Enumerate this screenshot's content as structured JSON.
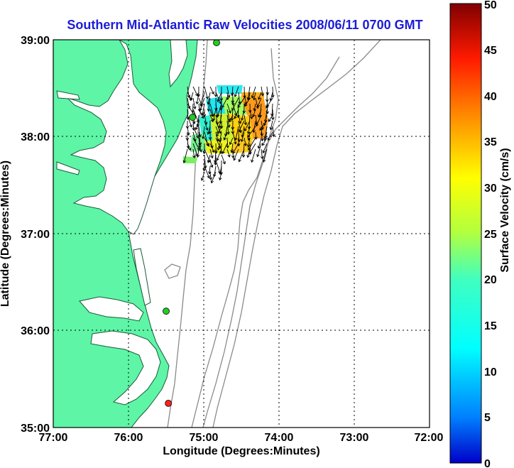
{
  "title": "Southern Mid-Atlantic Raw Velocities 2008/06/11 0700 GMT",
  "x_axis": {
    "label": "Longitude (Degrees:Minutes)",
    "ticks": [
      "77:00",
      "76:00",
      "75:00",
      "74:00",
      "73:00",
      "72:00"
    ]
  },
  "y_axis": {
    "label": "Latitude (Degrees:Minutes)",
    "ticks": [
      "39:00",
      "38:00",
      "37:00",
      "36:00",
      "35:00"
    ]
  },
  "colorbar": {
    "label": "Surface Velocity (cm/s)",
    "ticks": [
      "0",
      "5",
      "10",
      "15",
      "20",
      "25",
      "30",
      "35",
      "40",
      "45",
      "50"
    ],
    "min": 0,
    "max": 50,
    "colormap": "jet"
  },
  "map": {
    "lon_range": [
      -77,
      -72
    ],
    "lat_range": [
      35,
      39
    ],
    "grid": true,
    "land_color": "#5ef5a6",
    "stations": [
      {
        "lon": -74.83,
        "lat": 38.97,
        "color": "#22cc22"
      },
      {
        "lon": -75.15,
        "lat": 38.2,
        "color": "#22cc22"
      },
      {
        "lon": -75.5,
        "lat": 36.2,
        "color": "#22cc22"
      },
      {
        "lon": -75.47,
        "lat": 35.25,
        "color": "#ff2222"
      }
    ]
  }
}
